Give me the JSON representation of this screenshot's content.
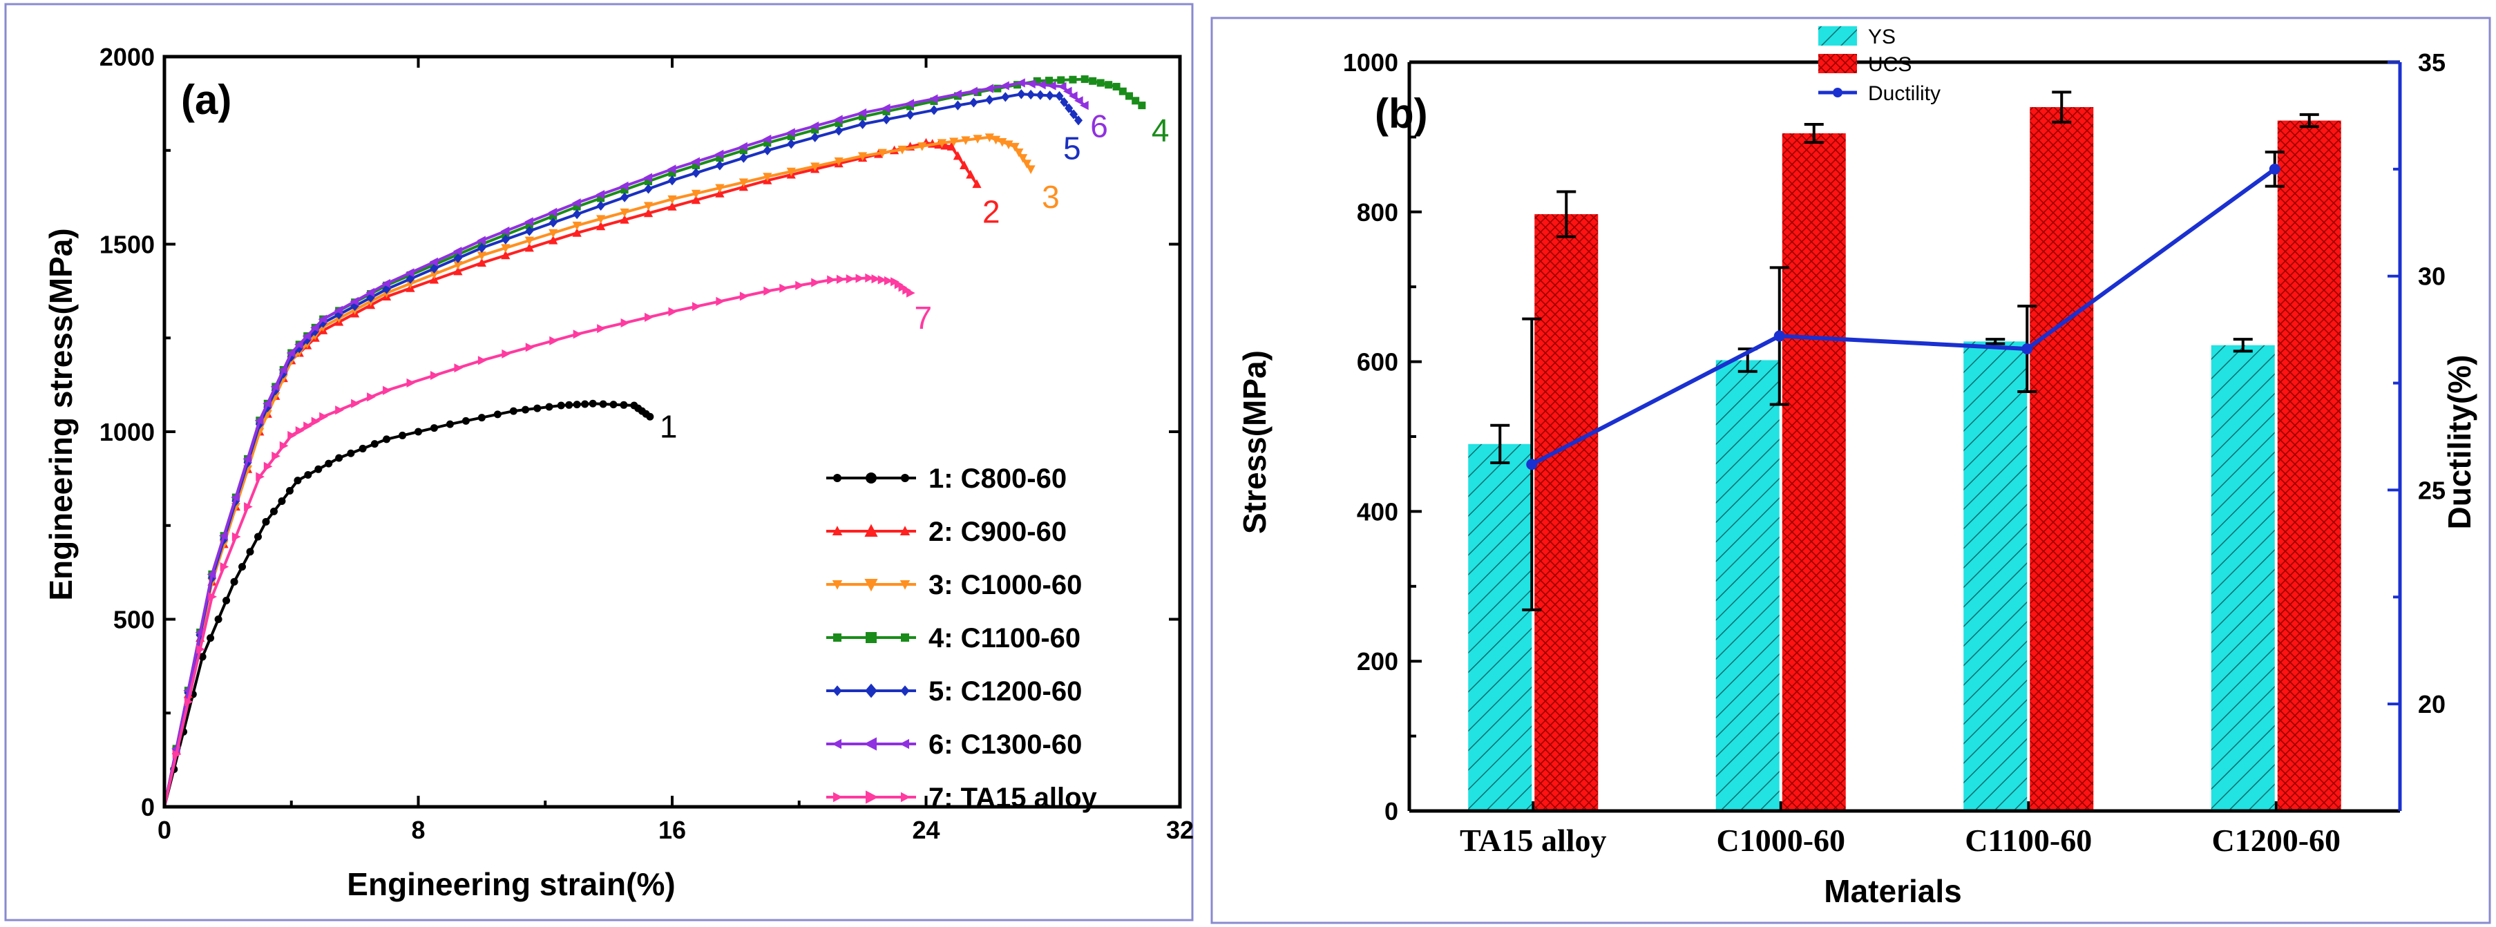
{
  "chart_data": [
    {
      "panel": "(a)",
      "type": "line",
      "xlabel": "Engineering strain(%)",
      "ylabel": "Engineering stress(MPa)",
      "xlim": [
        0,
        32
      ],
      "ylim": [
        0,
        2000
      ],
      "xticks": [
        "0",
        "8",
        "16",
        "24",
        "32"
      ],
      "yticks": [
        "0",
        "500",
        "1000",
        "1500",
        "2000"
      ],
      "legend_position": "bottom-right",
      "series": [
        {
          "id": "1",
          "name": "1: C800-60",
          "color": "#000000",
          "marker": "circle",
          "x": [
            0,
            1.2,
            2.2,
            3.2,
            4.2,
            5.5,
            7,
            9,
            11,
            12.5,
            13.5,
            14.8,
            15.3
          ],
          "y": [
            0,
            400,
            600,
            760,
            870,
            930,
            980,
            1020,
            1055,
            1070,
            1075,
            1070,
            1040
          ]
        },
        {
          "id": "2",
          "name": "2: C900-60",
          "color": "#ff2020",
          "marker": "triangle-up",
          "x": [
            0,
            1.5,
            3,
            4,
            5,
            7,
            10,
            13,
            16,
            19,
            22,
            24,
            24.8,
            25.6
          ],
          "y": [
            0,
            600,
            1000,
            1190,
            1270,
            1360,
            1450,
            1530,
            1600,
            1670,
            1730,
            1770,
            1760,
            1660
          ]
        },
        {
          "id": "3",
          "name": "3: C1000-60",
          "color": "#ff9020",
          "marker": "triangle-down",
          "x": [
            0,
            1.5,
            3,
            4,
            5,
            7,
            10,
            13,
            16,
            19,
            22,
            24.5,
            26,
            26.8,
            27.3
          ],
          "y": [
            0,
            600,
            1000,
            1190,
            1280,
            1370,
            1470,
            1550,
            1620,
            1680,
            1735,
            1770,
            1785,
            1760,
            1700
          ]
        },
        {
          "id": "4",
          "name": "4: C1100-60",
          "color": "#1a8c1a",
          "marker": "square",
          "x": [
            0,
            1.5,
            3,
            4,
            5,
            7,
            10,
            13,
            16,
            19,
            22,
            25,
            27.5,
            29,
            30,
            30.8
          ],
          "y": [
            0,
            620,
            1030,
            1210,
            1300,
            1390,
            1500,
            1600,
            1690,
            1770,
            1840,
            1895,
            1935,
            1940,
            1920,
            1870
          ]
        },
        {
          "id": "5",
          "name": "5: C1200-60",
          "color": "#1a30c0",
          "marker": "diamond",
          "x": [
            0,
            1.5,
            3,
            4,
            5,
            7,
            10,
            13,
            16,
            19,
            22,
            25,
            27,
            28.2,
            28.8
          ],
          "y": [
            0,
            610,
            1020,
            1200,
            1290,
            1380,
            1490,
            1580,
            1670,
            1750,
            1820,
            1870,
            1900,
            1895,
            1830
          ]
        },
        {
          "id": "6",
          "name": "6: C1300-60",
          "color": "#9030e0",
          "marker": "triangle-left",
          "x": [
            0,
            1.5,
            3,
            4,
            5,
            7,
            10,
            13,
            16,
            19,
            22,
            25,
            27,
            28.3,
            29
          ],
          "y": [
            0,
            620,
            1030,
            1210,
            1300,
            1395,
            1510,
            1610,
            1700,
            1780,
            1850,
            1900,
            1930,
            1920,
            1870
          ]
        },
        {
          "id": "7",
          "name": "7: TA15 alloy",
          "color": "#ff3aa0",
          "marker": "triangle-right",
          "x": [
            0,
            1.5,
            3,
            4,
            5,
            7,
            10,
            13,
            16,
            19,
            21,
            22.2,
            23,
            23.5
          ],
          "y": [
            0,
            560,
            880,
            990,
            1040,
            1110,
            1190,
            1260,
            1320,
            1375,
            1405,
            1410,
            1400,
            1370
          ]
        }
      ],
      "end_labels": [
        "1",
        "2",
        "3",
        "4",
        "5",
        "6",
        "7"
      ]
    },
    {
      "panel": "(b)",
      "type": "bar",
      "xlabel": "Materials",
      "ylabel": "Stress(MPa)",
      "y2label": "Ductility(%)",
      "categories": [
        "TA15 alloy",
        "C1000-60",
        "C1100-60",
        "C1200-60"
      ],
      "ylim": [
        0,
        1000
      ],
      "y2lim": [
        17.5,
        35
      ],
      "yticks": [
        "0",
        "200",
        "400",
        "600",
        "800",
        "1000"
      ],
      "y2ticks": [
        "20",
        "25",
        "30",
        "35"
      ],
      "legend_position": "top-left",
      "series": [
        {
          "name": "YS",
          "color": "#20e0e0",
          "values": [
            490,
            602,
            627,
            622
          ],
          "errors": [
            25,
            15,
            3,
            8
          ]
        },
        {
          "name": "UCS",
          "color": "#ff1010",
          "values": [
            797,
            905,
            940,
            922
          ],
          "errors": [
            30,
            12,
            20,
            8
          ]
        },
        {
          "name": "Ductility",
          "color": "#1a30d0",
          "axis": "y2",
          "values": [
            25.6,
            28.6,
            28.3,
            32.5
          ],
          "errors": [
            3.4,
            1.6,
            1.0,
            0.4
          ]
        }
      ]
    }
  ]
}
